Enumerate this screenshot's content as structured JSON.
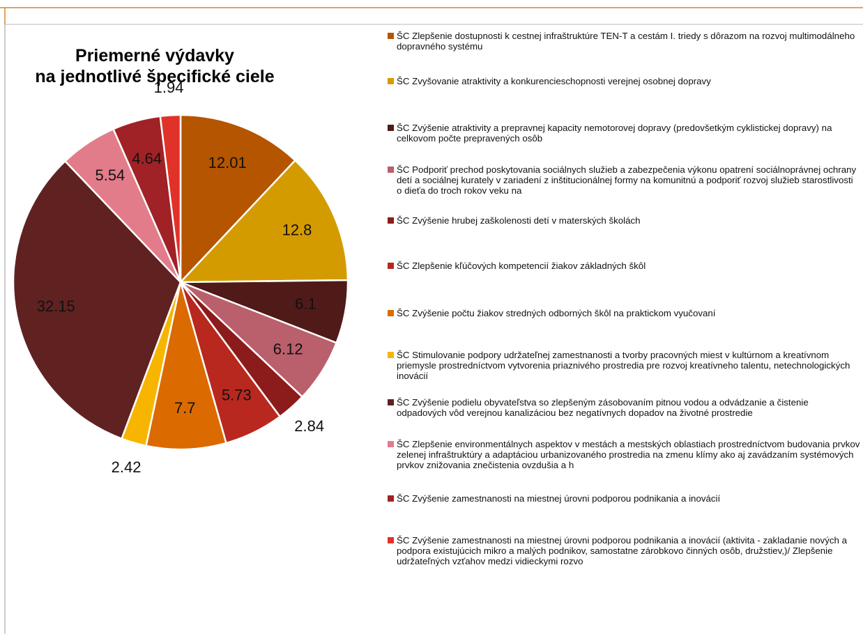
{
  "chart_data": {
    "type": "pie",
    "title": [
      "Priemerné výdavky",
      "na jednotlivé špecifické ciele"
    ],
    "categories": [
      "ŠC Zlepšenie dostupnosti k cestnej infraštruktúre TEN-T a cestám I. triedy s dôrazom na rozvoj multimodálneho dopravného systému",
      "ŠC Zvyšovanie atraktivity a konkurencieschopnosti verejnej osobnej dopravy",
      "ŠC Zvýšenie atraktivity a prepravnej kapacity nemotorovej dopravy (predovšetkým cyklistickej dopravy) na celkovom počte prepravených osôb",
      "ŠC Podporiť prechod poskytovania sociálnych služieb a zabezpečenia výkonu opatrení sociálnoprávnej ochrany detí a sociálnej kurately v zariadení z inštitucionálnej formy na komunitnú a podporiť rozvoj služieb starostlivosti o dieťa do troch rokov veku na",
      "ŠC Zvýšenie hrubej zaškolenosti detí v materských školách",
      "ŠC Zlepšenie kľúčových kompetencií žiakov základných škôl",
      "ŠC Zvýšenie počtu žiakov stredných odborných škôl na praktickom vyučovaní",
      "ŠC Stimulovanie podpory udržateľnej zamestnanosti a tvorby pracovných miest v kultúrnom a kreatívnom priemysle prostredníctvom vytvorenia priaznivého prostredia pre rozvoj kreatívneho talentu, netechnologických inovácií",
      "ŠC Zvýšenie podielu obyvateľstva so zlepšeným zásobovaním pitnou vodou a odvádzanie a čistenie  odpadových vôd verejnou kanalizáciou bez negatívnych dopadov na životné prostredie",
      "ŠC Zlepšenie environmentálnych aspektov v mestách a mestských oblastiach prostredníctvom budovania prvkov zelenej infraštruktúry a adaptáciou urbanizovaného prostredia na zmenu klímy ako aj zavádzaním systémových prvkov znižovania znečistenia ovzdušia a h",
      "ŠC Zvýšenie zamestnanosti na miestnej úrovni podporou podnikania a inovácií",
      "ŠC Zvýšenie zamestnanosti na miestnej úrovni podporou podnikania a inovácií (aktivita - zakladanie nových a podpora existujúcich mikro a malých podnikov, samostatne zárobkovo činných osôb, družstiev,)/ Zlepšenie udržateľných vzťahov medzi vidieckymi rozvo"
    ],
    "values": [
      12.01,
      12.8,
      6.1,
      6.12,
      2.84,
      5.73,
      7.7,
      2.42,
      32.15,
      5.54,
      4.64,
      1.94
    ],
    "colors": [
      "#b55500",
      "#d49b00",
      "#4f1a18",
      "#ba5f6c",
      "#8c1c1b",
      "#b8281f",
      "#db6a00",
      "#f7b500",
      "#5f2221",
      "#e27c8b",
      "#a02226",
      "#e1322a"
    ],
    "legend": "right"
  }
}
